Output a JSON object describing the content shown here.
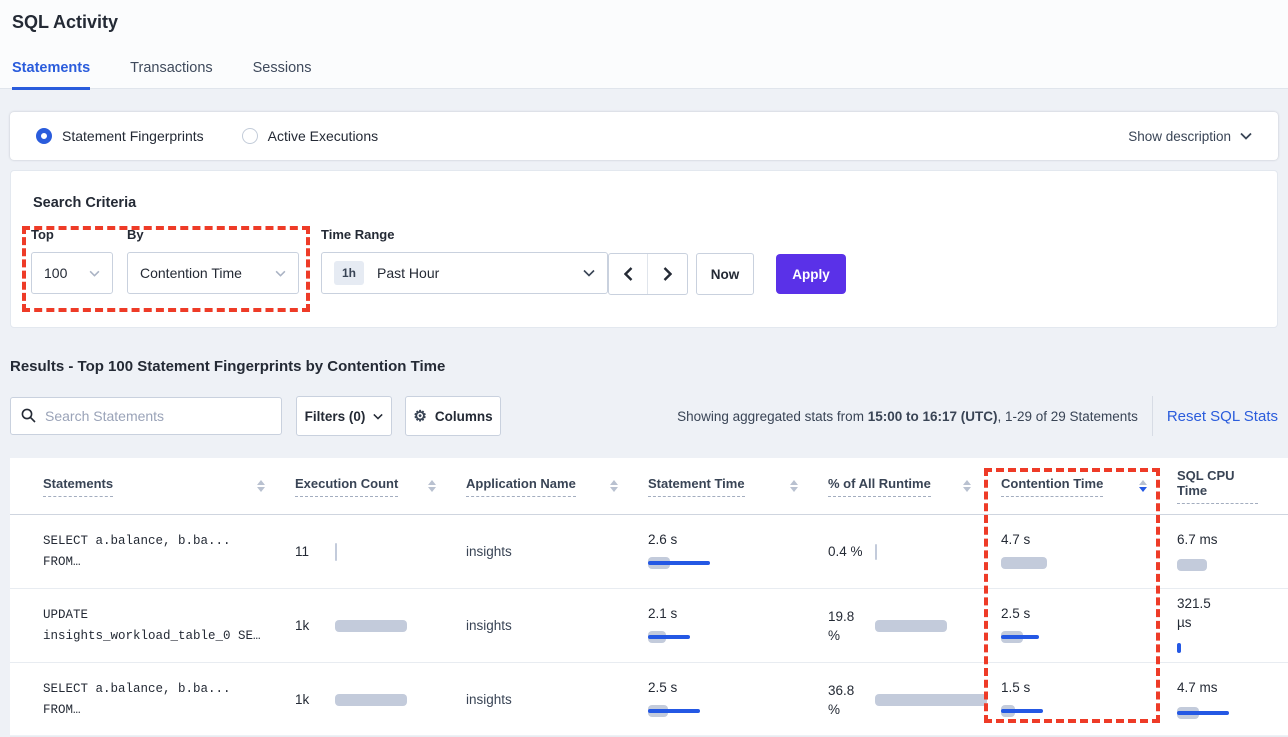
{
  "page": {
    "title": "SQL Activity"
  },
  "tabs": [
    {
      "label": "Statements",
      "active": true
    },
    {
      "label": "Transactions",
      "active": false
    },
    {
      "label": "Sessions",
      "active": false
    }
  ],
  "view_bar": {
    "radios": [
      {
        "label": "Statement Fingerprints",
        "selected": true
      },
      {
        "label": "Active Executions",
        "selected": false
      }
    ],
    "show_description": "Show description"
  },
  "search_criteria": {
    "title": "Search Criteria",
    "top_label": "Top",
    "top_value": "100",
    "by_label": "By",
    "by_value": "Contention Time",
    "time_range_label": "Time Range",
    "time_range_badge": "1h",
    "time_range_value": "Past Hour",
    "now_label": "Now",
    "apply_label": "Apply"
  },
  "results": {
    "heading": "Results - Top 100 Statement Fingerprints by Contention Time",
    "search_placeholder": "Search Statements",
    "filters_label": "Filters (0)",
    "columns_label": "Columns",
    "stats_prefix": "Showing aggregated stats from ",
    "stats_bold": "15:00 to 16:17 (UTC)",
    "stats_suffix": ", 1-29 of 29 Statements",
    "reset_label": "Reset SQL Stats"
  },
  "table": {
    "headers": [
      {
        "label": "Statements",
        "sort": "none"
      },
      {
        "label": "Execution Count",
        "sort": "none"
      },
      {
        "label": "Application Name",
        "sort": "none"
      },
      {
        "label": "Statement Time",
        "sort": "none"
      },
      {
        "label": "% of All Runtime",
        "sort": "none"
      },
      {
        "label": "Contention Time",
        "sort": "desc"
      },
      {
        "label": "SQL CPU Time",
        "sort": "hidden"
      }
    ],
    "rows": [
      {
        "statement_line1": "SELECT a.balance, b.ba...",
        "statement_line2": "FROM…",
        "exec_count": "11",
        "exec_bar": {
          "gray": 2,
          "blue": 0,
          "h": 18
        },
        "app": "insights",
        "stmt_time": {
          "value": "2.6 s",
          "gray": 22,
          "blue": 62
        },
        "runtime": {
          "value": "0.4 %",
          "gray": 2,
          "blue": 0,
          "h": 16
        },
        "contention": {
          "value": "4.7 s",
          "gray": 46,
          "blue": 0
        },
        "cpu": {
          "value": "6.7 ms",
          "gray": 30,
          "blue": 0
        }
      },
      {
        "statement_line1": "UPDATE",
        "statement_line2": "insights_workload_table_0 SE…",
        "exec_count": "1k",
        "exec_bar": {
          "gray": 72,
          "blue": 0
        },
        "app": "insights",
        "stmt_time": {
          "value": "2.1 s",
          "gray": 18,
          "blue": 42
        },
        "runtime": {
          "value": "19.8 %",
          "gray": 72,
          "blue": 0
        },
        "contention": {
          "value": "2.5 s",
          "gray": 22,
          "blue": 38
        },
        "cpu": {
          "value": "321.5 µs",
          "gray": 0,
          "blue": 4,
          "h": 10
        }
      },
      {
        "statement_line1": "SELECT a.balance, b.ba...",
        "statement_line2": "FROM…",
        "exec_count": "1k",
        "exec_bar": {
          "gray": 72,
          "blue": 0
        },
        "app": "insights",
        "stmt_time": {
          "value": "2.5 s",
          "gray": 20,
          "blue": 52
        },
        "runtime": {
          "value": "36.8 %",
          "gray": 112,
          "blue": 0
        },
        "contention": {
          "value": "1.5 s",
          "gray": 14,
          "blue": 42
        },
        "cpu": {
          "value": "4.7 ms",
          "gray": 22,
          "blue": 52
        }
      }
    ]
  },
  "colors": {
    "accent_blue": "#2a5cdc",
    "apply_purple": "#5a31e8",
    "bar_gray": "#c3cbdb",
    "bar_blue": "#2458e4",
    "annotation_red": "#ee3b27"
  }
}
